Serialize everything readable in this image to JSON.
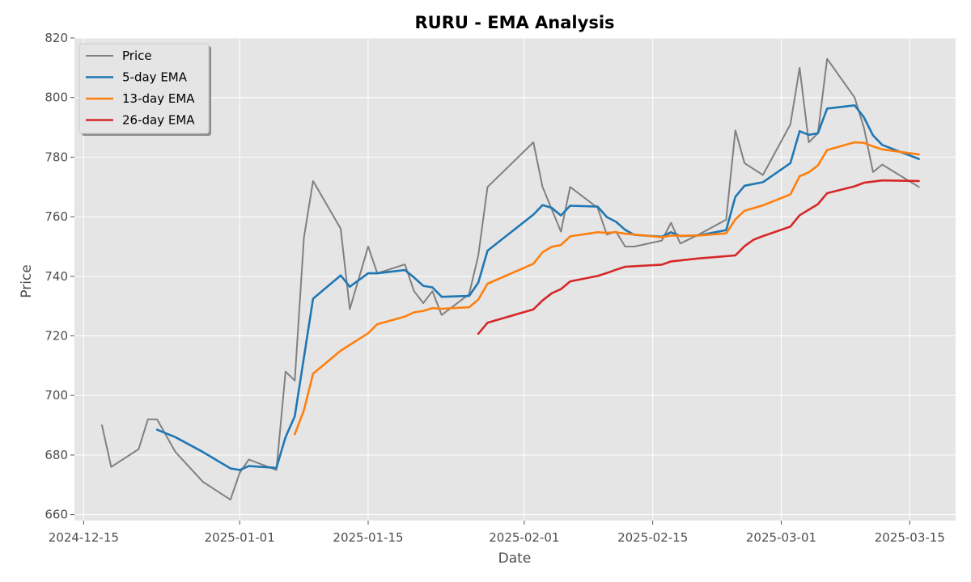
{
  "chart_data": {
    "type": "line",
    "title": "RURU - EMA Analysis",
    "xlabel": "Date",
    "ylabel": "Price",
    "xlim": [
      "2024-12-14",
      "2025-03-20"
    ],
    "ylim": [
      658,
      820
    ],
    "x_ticks": [
      "2024-12-15",
      "2025-01-01",
      "2025-01-15",
      "2025-02-01",
      "2025-02-15",
      "2025-03-01",
      "2025-03-15"
    ],
    "y_ticks": [
      660,
      680,
      700,
      720,
      740,
      760,
      780,
      800,
      820
    ],
    "grid": true,
    "legend_position": "top-left",
    "series": [
      {
        "name": "Price",
        "color": "#808080",
        "x": [
          "2024-12-17",
          "2024-12-18",
          "2024-12-21",
          "2024-12-22",
          "2024-12-23",
          "2024-12-25",
          "2024-12-28",
          "2024-12-31",
          "2025-01-01",
          "2025-01-02",
          "2025-01-05",
          "2025-01-06",
          "2025-01-07",
          "2025-01-08",
          "2025-01-09",
          "2025-01-12",
          "2025-01-13",
          "2025-01-15",
          "2025-01-16",
          "2025-01-19",
          "2025-01-20",
          "2025-01-21",
          "2025-01-22",
          "2025-01-23",
          "2025-01-26",
          "2025-01-27",
          "2025-01-28",
          "2025-02-02",
          "2025-02-03",
          "2025-02-05",
          "2025-02-06",
          "2025-02-09",
          "2025-02-10",
          "2025-02-11",
          "2025-02-12",
          "2025-02-13",
          "2025-02-16",
          "2025-02-17",
          "2025-02-18",
          "2025-02-20",
          "2025-02-23",
          "2025-02-24",
          "2025-02-25",
          "2025-02-27",
          "2025-03-02",
          "2025-03-03",
          "2025-03-04",
          "2025-03-05",
          "2025-03-06",
          "2025-03-09",
          "2025-03-10",
          "2025-03-11",
          "2025-03-12",
          "2025-03-16"
        ],
        "values": [
          690,
          676,
          682,
          692,
          692,
          681,
          671,
          665,
          674,
          678.5,
          675,
          708,
          705,
          753,
          772,
          756,
          729,
          750,
          741,
          744,
          735,
          731,
          735,
          727,
          734,
          747,
          770,
          785,
          770,
          755,
          770,
          763,
          754,
          755,
          750,
          750,
          752,
          758,
          751,
          754,
          759,
          789,
          778,
          774,
          791,
          810,
          785,
          788,
          813,
          800,
          790,
          775,
          777.5,
          770
        ]
      },
      {
        "name": "5-day EMA",
        "color": "#1f77b4",
        "x": [
          "2024-12-23",
          "2024-12-25",
          "2024-12-28",
          "2024-12-31",
          "2025-01-01",
          "2025-01-02",
          "2025-01-05",
          "2025-01-06",
          "2025-01-07",
          "2025-01-09",
          "2025-01-12",
          "2025-01-13",
          "2025-01-15",
          "2025-01-16",
          "2025-01-19",
          "2025-01-20",
          "2025-01-21",
          "2025-01-22",
          "2025-01-23",
          "2025-01-26",
          "2025-01-27",
          "2025-01-28",
          "2025-02-02",
          "2025-02-03",
          "2025-02-04",
          "2025-02-05",
          "2025-02-06",
          "2025-02-09",
          "2025-02-10",
          "2025-02-11",
          "2025-02-12",
          "2025-02-13",
          "2025-02-16",
          "2025-02-17",
          "2025-02-18",
          "2025-02-20",
          "2025-02-23",
          "2025-02-24",
          "2025-02-25",
          "2025-02-27",
          "2025-03-02",
          "2025-03-03",
          "2025-03-04",
          "2025-03-05",
          "2025-03-06",
          "2025-03-09",
          "2025-03-10",
          "2025-03-11",
          "2025-03-12",
          "2025-03-16"
        ],
        "values": [
          688.5,
          686,
          681,
          675.5,
          675,
          676.3,
          675.7,
          686,
          693,
          732.5,
          740.3,
          736.5,
          741,
          741,
          742.1,
          739.6,
          736.8,
          736.3,
          733.1,
          733.4,
          737.9,
          748.6,
          760.7,
          763.9,
          763,
          760.4,
          763.7,
          763.4,
          759.9,
          758.3,
          755.6,
          753.9,
          753.3,
          754.8,
          753.5,
          753.7,
          755.5,
          766.7,
          770.4,
          771.6,
          778,
          788.7,
          787.5,
          788,
          796.3,
          797.4,
          793.4,
          787.3,
          784.1,
          779.4
        ]
      },
      {
        "name": "13-day EMA",
        "color": "#ff7f0e",
        "x": [
          "2025-01-07",
          "2025-01-08",
          "2025-01-09",
          "2025-01-12",
          "2025-01-15",
          "2025-01-16",
          "2025-01-19",
          "2025-01-20",
          "2025-01-21",
          "2025-01-22",
          "2025-01-23",
          "2025-01-26",
          "2025-01-27",
          "2025-01-28",
          "2025-02-02",
          "2025-02-03",
          "2025-02-04",
          "2025-02-05",
          "2025-02-06",
          "2025-02-09",
          "2025-02-10",
          "2025-02-11",
          "2025-02-12",
          "2025-02-16",
          "2025-02-17",
          "2025-02-18",
          "2025-02-20",
          "2025-02-23",
          "2025-02-24",
          "2025-02-25",
          "2025-02-27",
          "2025-03-02",
          "2025-03-03",
          "2025-03-04",
          "2025-03-05",
          "2025-03-06",
          "2025-03-09",
          "2025-03-10",
          "2025-03-11",
          "2025-03-12",
          "2025-03-16"
        ],
        "values": [
          687,
          695,
          707.3,
          715,
          720.9,
          723.9,
          726.5,
          727.9,
          728.4,
          729.3,
          729.1,
          729.6,
          732.2,
          737.5,
          744.2,
          748.1,
          749.9,
          750.5,
          753.4,
          754.8,
          754.6,
          754.8,
          754.3,
          753.1,
          753.7,
          753.6,
          753.7,
          754.4,
          759.1,
          762,
          763.8,
          767.5,
          773.6,
          774.9,
          777.2,
          782.4,
          785,
          784.8,
          783.6,
          782.6,
          780.9
        ]
      },
      {
        "name": "26-day EMA",
        "color": "#d62728",
        "x": [
          "2025-01-27",
          "2025-01-28",
          "2025-02-02",
          "2025-02-03",
          "2025-02-04",
          "2025-02-05",
          "2025-02-06",
          "2025-02-09",
          "2025-02-10",
          "2025-02-11",
          "2025-02-12",
          "2025-02-16",
          "2025-02-17",
          "2025-02-20",
          "2025-02-24",
          "2025-02-25",
          "2025-02-26",
          "2025-02-27",
          "2025-03-02",
          "2025-03-03",
          "2025-03-05",
          "2025-03-06",
          "2025-03-09",
          "2025-03-10",
          "2025-03-12",
          "2025-03-16"
        ],
        "values": [
          720.7,
          724.4,
          728.9,
          731.9,
          734.3,
          735.7,
          738.3,
          740.1,
          741.1,
          742.2,
          743.2,
          743.9,
          745,
          746,
          747,
          750.1,
          752.3,
          753.5,
          756.7,
          760.5,
          764.2,
          767.9,
          770.2,
          771.4,
          772.2,
          772
        ]
      }
    ]
  }
}
